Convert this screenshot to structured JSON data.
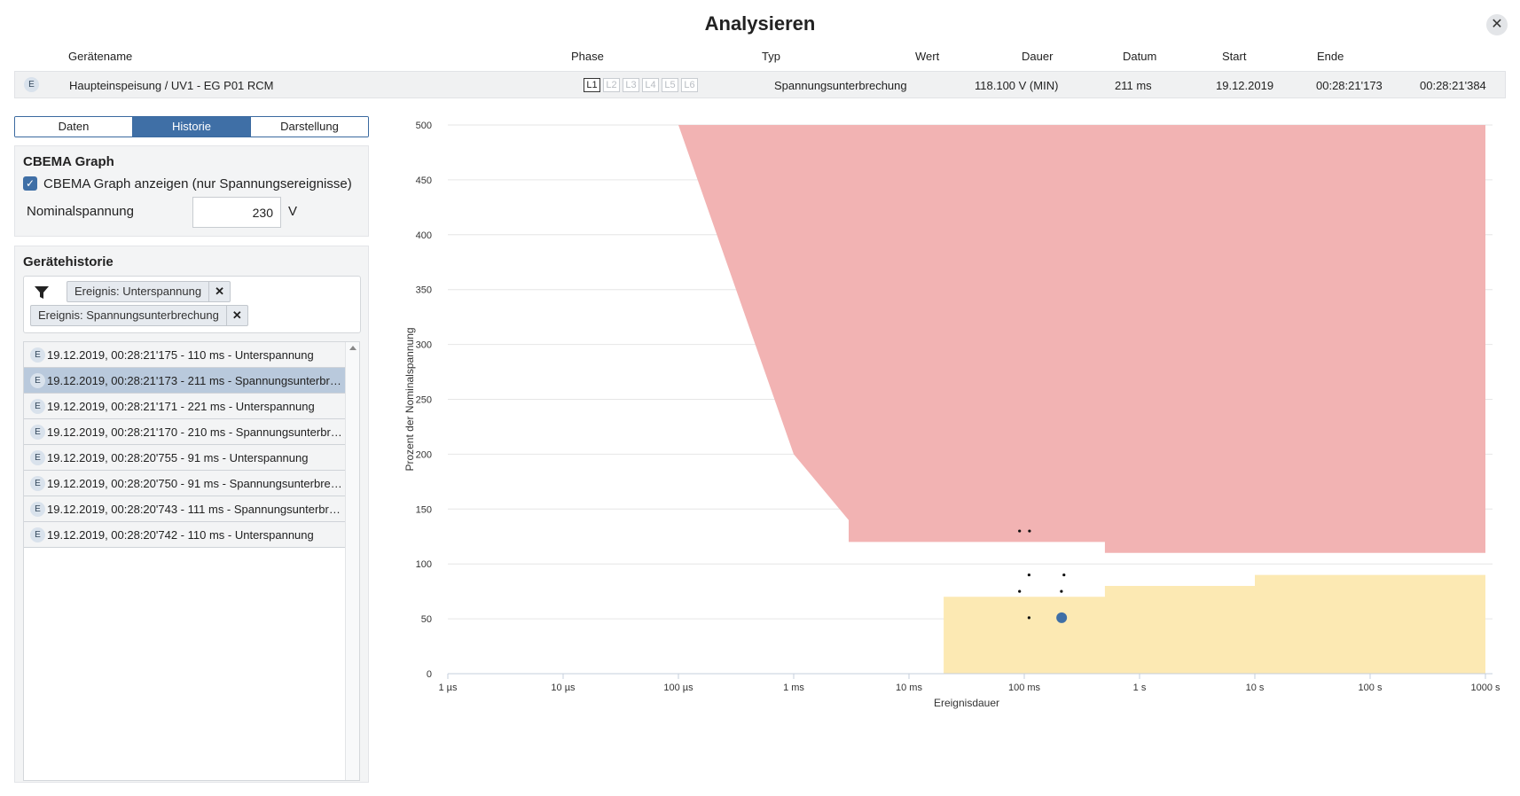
{
  "dialog": {
    "title": "Analysieren",
    "close_icon": "close-icon"
  },
  "header": {
    "columns": {
      "device": "Gerätename",
      "phase": "Phase",
      "type": "Typ",
      "value": "Wert",
      "duration": "Dauer",
      "date": "Datum",
      "start": "Start",
      "end": "Ende"
    }
  },
  "event": {
    "badge": "E",
    "device": "Haupteinspeisung / UV1 - EG P01 RCM",
    "phases": [
      "L1",
      "L2",
      "L3",
      "L4",
      "L5",
      "L6"
    ],
    "active_phase": "L1",
    "type": "Spannungsunterbrechung",
    "value": "118.100 V (MIN)",
    "duration": "211 ms",
    "date": "19.12.2019",
    "start": "00:28:21'173",
    "end": "00:28:21'384"
  },
  "tabs": [
    {
      "label": "Daten",
      "active": false
    },
    {
      "label": "Historie",
      "active": true
    },
    {
      "label": "Darstellung",
      "active": false
    }
  ],
  "cbema": {
    "title": "CBEMA Graph",
    "checkbox_label": "CBEMA Graph anzeigen (nur Spannungsereignisse)",
    "checked": true,
    "nominal_label": "Nominalspannung",
    "nominal_value": "230",
    "nominal_unit": "V"
  },
  "history": {
    "title": "Gerätehistorie",
    "filter_icon": "filter-icon",
    "filters": [
      "Ereignis: Unterspannung",
      "Ereignis: Spannungsunterbrechung"
    ],
    "items": [
      {
        "badge": "E",
        "text": "19.12.2019, 00:28:21'175 - 110 ms - Unterspannung",
        "selected": false
      },
      {
        "badge": "E",
        "text": "19.12.2019, 00:28:21'173 - 211 ms - Spannungsunterbrechung",
        "selected": true
      },
      {
        "badge": "E",
        "text": "19.12.2019, 00:28:21'171 - 221 ms - Unterspannung",
        "selected": false
      },
      {
        "badge": "E",
        "text": "19.12.2019, 00:28:21'170 - 210 ms - Spannungsunterbrechung",
        "selected": false
      },
      {
        "badge": "E",
        "text": "19.12.2019, 00:28:20'755 - 91 ms - Unterspannung",
        "selected": false
      },
      {
        "badge": "E",
        "text": "19.12.2019, 00:28:20'750 - 91 ms - Spannungsunterbrechung",
        "selected": false
      },
      {
        "badge": "E",
        "text": "19.12.2019, 00:28:20'743 - 111 ms - Spannungsunterbrechung",
        "selected": false
      },
      {
        "badge": "E",
        "text": "19.12.2019, 00:28:20'742 - 110 ms - Unterspannung",
        "selected": false
      }
    ]
  },
  "chart_data": {
    "type": "scatter",
    "xlabel": "Ereignisdauer",
    "ylabel": "Prozent der Nominalspannung",
    "x_scale": "log",
    "x_unit": "s",
    "xlim": [
      1e-06,
      1000
    ],
    "x_ticks": [
      {
        "value": 1e-06,
        "label": "1 µs"
      },
      {
        "value": 1e-05,
        "label": "10 µs"
      },
      {
        "value": 0.0001,
        "label": "100 µs"
      },
      {
        "value": 0.001,
        "label": "1 ms"
      },
      {
        "value": 0.01,
        "label": "10 ms"
      },
      {
        "value": 0.1,
        "label": "100 ms"
      },
      {
        "value": 1,
        "label": "1 s"
      },
      {
        "value": 10,
        "label": "10 s"
      },
      {
        "value": 100,
        "label": "100 s"
      },
      {
        "value": 1000,
        "label": "1000 s"
      }
    ],
    "ylim": [
      0,
      500
    ],
    "y_ticks": [
      0,
      50,
      100,
      150,
      200,
      250,
      300,
      350,
      400,
      450,
      500
    ],
    "grid": true,
    "overvoltage_region": {
      "color": "#f2b3b3",
      "boundary": [
        [
          0.0001,
          500
        ],
        [
          0.001,
          200
        ],
        [
          0.003,
          140
        ],
        [
          0.003,
          120
        ],
        [
          0.5,
          120
        ],
        [
          0.5,
          110
        ],
        [
          1000,
          110
        ],
        [
          1000,
          500
        ]
      ]
    },
    "undervoltage_region": {
      "color": "#fce9b3",
      "boundary": [
        [
          0.02,
          0
        ],
        [
          0.02,
          70
        ],
        [
          0.5,
          70
        ],
        [
          0.5,
          80
        ],
        [
          10,
          80
        ],
        [
          10,
          90
        ],
        [
          1000,
          90
        ],
        [
          1000,
          0
        ]
      ]
    },
    "events": [
      {
        "x": 0.091,
        "y": 130
      },
      {
        "x": 0.111,
        "y": 130
      },
      {
        "x": 0.11,
        "y": 90
      },
      {
        "x": 0.221,
        "y": 90
      },
      {
        "x": 0.091,
        "y": 75
      },
      {
        "x": 0.21,
        "y": 75
      },
      {
        "x": 0.11,
        "y": 51
      }
    ],
    "selected_event": {
      "x": 0.211,
      "y": 51,
      "color": "#3f6fa6"
    }
  }
}
